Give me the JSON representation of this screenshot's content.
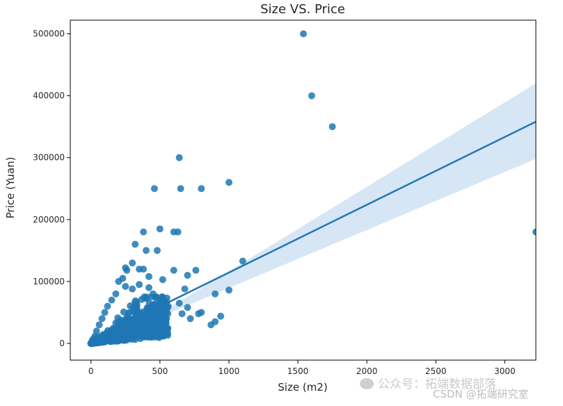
{
  "chart_data": {
    "type": "scatter",
    "title": "Size VS. Price",
    "xlabel": "Size (m2)",
    "ylabel": "Price (Yuan)",
    "xlim": [
      -150,
      3225
    ],
    "ylim": [
      -27000,
      522000
    ],
    "xticks": [
      0,
      500,
      1000,
      1500,
      2000,
      2500,
      3000
    ],
    "yticks": [
      0,
      100000,
      200000,
      300000,
      400000,
      500000
    ],
    "xtick_labels": [
      "0",
      "500",
      "1000",
      "1500",
      "2000",
      "2500",
      "3000"
    ],
    "ytick_labels": [
      "0",
      "100000",
      "200000",
      "300000",
      "400000",
      "500000"
    ],
    "grid": false,
    "point_color": "#1f77b4",
    "regression_line": {
      "x": [
        10,
        3225
      ],
      "y": [
        6000,
        358000
      ],
      "color": "#1f77b4",
      "ci_color": "#c6dbef",
      "ci_upper_end": 420000,
      "ci_lower_end": 298000
    },
    "points": [
      [
        1540,
        500000
      ],
      [
        1600,
        400000
      ],
      [
        1750,
        350000
      ],
      [
        3225,
        180000
      ],
      [
        640,
        300000
      ],
      [
        460,
        250000
      ],
      [
        650,
        250000
      ],
      [
        800,
        250000
      ],
      [
        1000,
        260000
      ],
      [
        500,
        185000
      ],
      [
        600,
        180000
      ],
      [
        630,
        180000
      ],
      [
        380,
        180000
      ],
      [
        320,
        160000
      ],
      [
        400,
        150000
      ],
      [
        480,
        150000
      ],
      [
        1100,
        133000
      ],
      [
        300,
        130000
      ],
      [
        250,
        122000
      ],
      [
        260,
        118000
      ],
      [
        350,
        120000
      ],
      [
        380,
        120000
      ],
      [
        600,
        118000
      ],
      [
        760,
        118000
      ],
      [
        200,
        100000
      ],
      [
        230,
        105000
      ],
      [
        420,
        108000
      ],
      [
        520,
        103000
      ],
      [
        700,
        110000
      ],
      [
        680,
        88000
      ],
      [
        1000,
        86000
      ],
      [
        900,
        80000
      ],
      [
        800,
        50000
      ],
      [
        780,
        48000
      ],
      [
        940,
        44000
      ],
      [
        900,
        35000
      ],
      [
        870,
        30000
      ],
      [
        720,
        40000
      ],
      [
        660,
        48000
      ],
      [
        700,
        58000
      ],
      [
        640,
        65000
      ],
      [
        560,
        60000
      ],
      [
        500,
        70000
      ],
      [
        450,
        80000
      ],
      [
        420,
        90000
      ],
      [
        350,
        95000
      ],
      [
        300,
        88000
      ],
      [
        250,
        92000
      ],
      [
        180,
        80000
      ],
      [
        150,
        70000
      ],
      [
        120,
        60000
      ],
      [
        100,
        50000
      ],
      [
        80,
        40000
      ],
      [
        60,
        30000
      ],
      [
        40,
        20000
      ],
      [
        30,
        12000
      ],
      [
        20,
        8000
      ],
      [
        10,
        5000
      ],
      [
        5,
        2000
      ]
    ]
  },
  "watermark": {
    "line1": "公众号：拓端数据部落",
    "line2": "CSDN @拓端研究室"
  }
}
